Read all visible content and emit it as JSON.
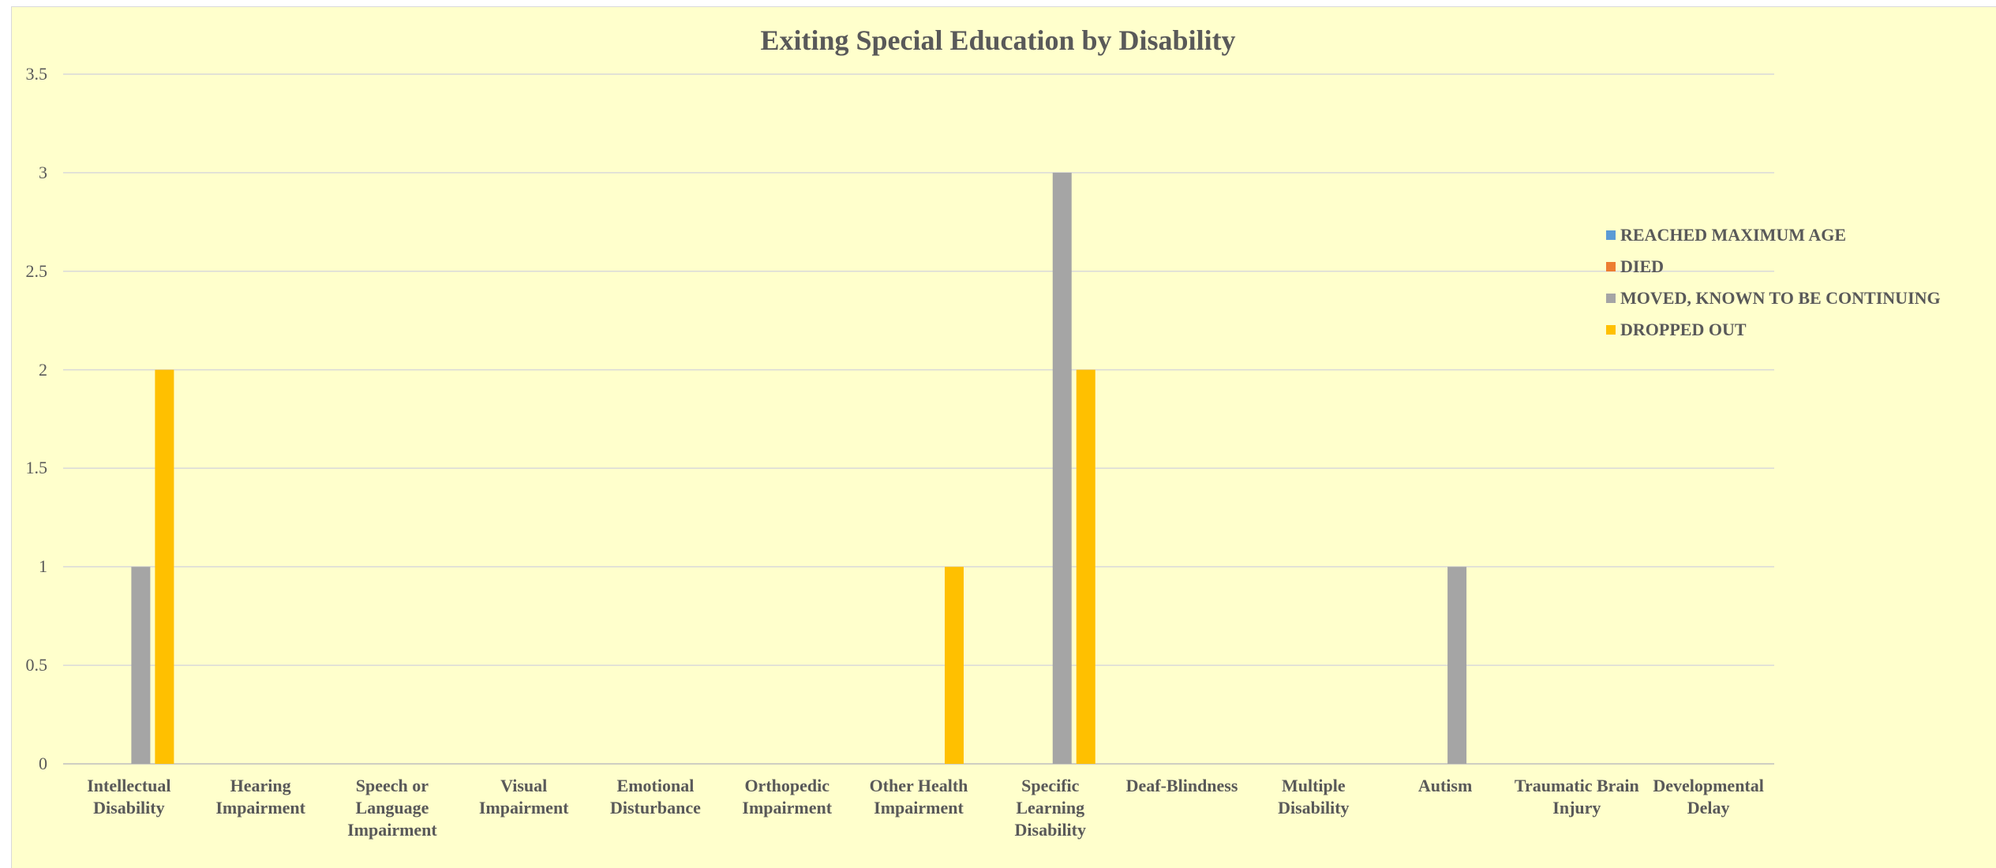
{
  "chart_data": {
    "type": "bar",
    "title": "Exiting Special Education by Disability",
    "xlabel": "",
    "ylabel": "",
    "ylim": [
      0,
      3.5
    ],
    "yticks": [
      "0",
      "0.5",
      "1",
      "1.5",
      "2",
      "2.5",
      "3",
      "3.5"
    ],
    "grid": true,
    "legend_position": "right",
    "categories": [
      "Intellectual Disability",
      "Hearing Impairment",
      "Speech or Language Impairment",
      "Visual Impairment",
      "Emotional Disturbance",
      "Orthopedic Impairment",
      "Other Health Impairment",
      "Specific Learning Disability",
      "Deaf-Blindness",
      "Multiple Disability",
      "Autism",
      "Traumatic Brain Injury",
      "Developmental Delay"
    ],
    "series": [
      {
        "name": "REACHED MAXIMUM AGE",
        "color": "#5b9bd5",
        "values": [
          0,
          0,
          0,
          0,
          0,
          0,
          0,
          0,
          0,
          0,
          0,
          0,
          0
        ]
      },
      {
        "name": "DIED",
        "color": "#ed7d31",
        "values": [
          0,
          0,
          0,
          0,
          0,
          0,
          0,
          0,
          0,
          0,
          0,
          0,
          0
        ]
      },
      {
        "name": "MOVED, KNOWN TO BE CONTINUING",
        "color": "#a5a5a5",
        "values": [
          1,
          0,
          0,
          0,
          0,
          0,
          0,
          3,
          0,
          0,
          1,
          0,
          0
        ]
      },
      {
        "name": "DROPPED OUT",
        "color": "#ffc000",
        "values": [
          2,
          0,
          0,
          0,
          0,
          0,
          1,
          2,
          0,
          0,
          0,
          0,
          0
        ]
      }
    ]
  }
}
